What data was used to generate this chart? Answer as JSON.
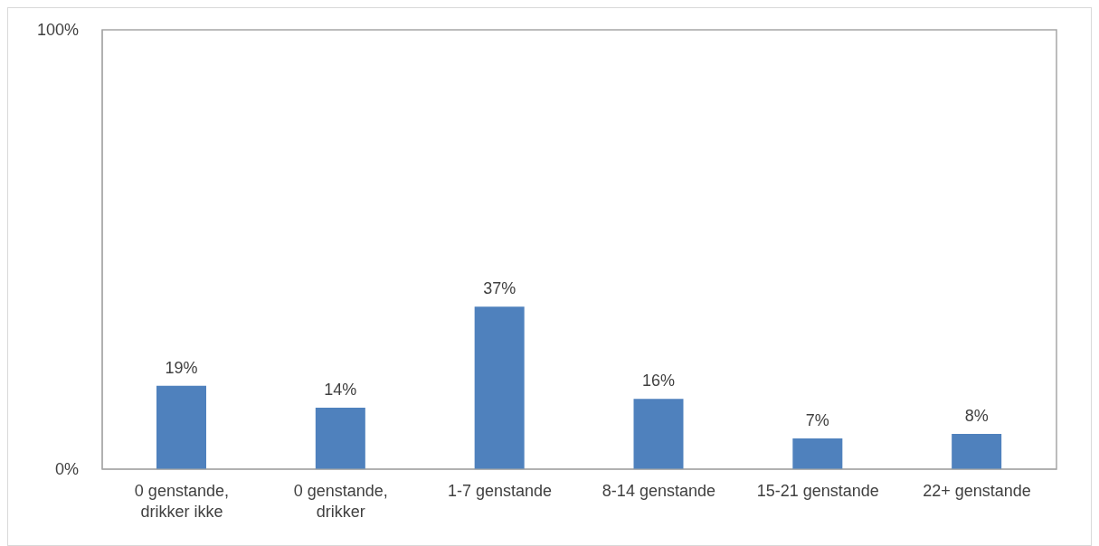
{
  "chart_data": {
    "type": "bar",
    "categories": [
      "0 genstande, drikker ikke",
      "0 genstande, drikker",
      "1-7 genstande",
      "8-14 genstande",
      "15-21 genstande",
      "22+ genstande"
    ],
    "values": [
      19,
      14,
      37,
      16,
      7,
      8
    ],
    "value_labels": [
      "19%",
      "14%",
      "37%",
      "16%",
      "7%",
      "8%"
    ],
    "color": "#4f81bd",
    "ylim": [
      0,
      100
    ],
    "yticks": [
      {
        "value": 0,
        "label": "0%"
      },
      {
        "value": 100,
        "label": "100%"
      }
    ],
    "grid": false,
    "legend": false
  }
}
